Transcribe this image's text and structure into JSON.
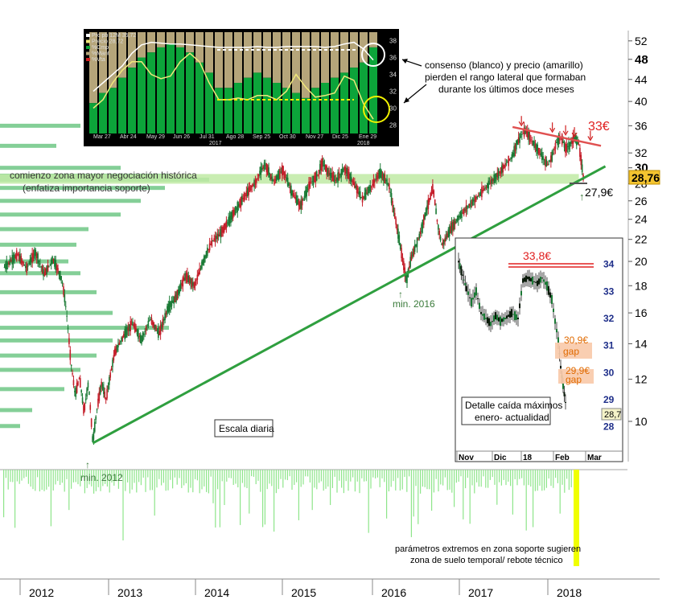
{
  "chart_data": {
    "type": "candlestick",
    "timeframe_label": "Escala diaria",
    "x_axis": {
      "years": [
        "2012",
        "2013",
        "2014",
        "2015",
        "2016",
        "2017",
        "2018"
      ]
    },
    "y_axis": {
      "scale": "log",
      "ticks": [
        "52",
        "48",
        "44",
        "40",
        "36",
        "32",
        "30",
        "28",
        "26",
        "24",
        "22",
        "20",
        "18",
        "16",
        "14",
        "12",
        "10"
      ],
      "ylim": [
        8.4,
        54
      ]
    },
    "price_series": [
      {
        "t": 2011.55,
        "v": 19.5
      },
      {
        "t": 2011.7,
        "v": 20.6
      },
      {
        "t": 2011.8,
        "v": 19.4
      },
      {
        "t": 2011.9,
        "v": 20.8
      },
      {
        "t": 2012.0,
        "v": 18.9
      },
      {
        "t": 2012.1,
        "v": 20.2
      },
      {
        "t": 2012.2,
        "v": 18.5
      },
      {
        "t": 2012.25,
        "v": 16.2
      },
      {
        "t": 2012.3,
        "v": 13.0
      },
      {
        "t": 2012.35,
        "v": 11.2
      },
      {
        "t": 2012.4,
        "v": 12.1
      },
      {
        "t": 2012.45,
        "v": 10.4
      },
      {
        "t": 2012.5,
        "v": 11.8
      },
      {
        "t": 2012.55,
        "v": 9.1
      },
      {
        "t": 2012.6,
        "v": 10.6
      },
      {
        "t": 2012.65,
        "v": 11.8
      },
      {
        "t": 2012.7,
        "v": 11.0
      },
      {
        "t": 2012.8,
        "v": 13.5
      },
      {
        "t": 2012.9,
        "v": 14.5
      },
      {
        "t": 2013.0,
        "v": 15.3
      },
      {
        "t": 2013.1,
        "v": 14.2
      },
      {
        "t": 2013.2,
        "v": 15.6
      },
      {
        "t": 2013.3,
        "v": 14.6
      },
      {
        "t": 2013.4,
        "v": 16.3
      },
      {
        "t": 2013.5,
        "v": 17.2
      },
      {
        "t": 2013.6,
        "v": 18.8
      },
      {
        "t": 2013.7,
        "v": 18.0
      },
      {
        "t": 2013.8,
        "v": 20.0
      },
      {
        "t": 2013.9,
        "v": 21.8
      },
      {
        "t": 2014.0,
        "v": 22.6
      },
      {
        "t": 2014.1,
        "v": 24.0
      },
      {
        "t": 2014.2,
        "v": 25.5
      },
      {
        "t": 2014.3,
        "v": 27.0
      },
      {
        "t": 2014.4,
        "v": 28.3
      },
      {
        "t": 2014.45,
        "v": 29.6
      },
      {
        "t": 2014.5,
        "v": 30.4
      },
      {
        "t": 2014.55,
        "v": 29.2
      },
      {
        "t": 2014.6,
        "v": 28.2
      },
      {
        "t": 2014.7,
        "v": 29.8
      },
      {
        "t": 2014.8,
        "v": 27.0
      },
      {
        "t": 2014.9,
        "v": 25.4
      },
      {
        "t": 2015.0,
        "v": 27.8
      },
      {
        "t": 2015.1,
        "v": 29.2
      },
      {
        "t": 2015.15,
        "v": 30.8
      },
      {
        "t": 2015.2,
        "v": 29.6
      },
      {
        "t": 2015.3,
        "v": 28.4
      },
      {
        "t": 2015.4,
        "v": 29.9
      },
      {
        "t": 2015.5,
        "v": 28.1
      },
      {
        "t": 2015.6,
        "v": 26.2
      },
      {
        "t": 2015.7,
        "v": 27.6
      },
      {
        "t": 2015.8,
        "v": 29.4
      },
      {
        "t": 2015.9,
        "v": 27.9
      },
      {
        "t": 2015.95,
        "v": 25.2
      },
      {
        "t": 2016.0,
        "v": 22.8
      },
      {
        "t": 2016.05,
        "v": 20.4
      },
      {
        "t": 2016.1,
        "v": 18.3
      },
      {
        "t": 2016.15,
        "v": 20.2
      },
      {
        "t": 2016.25,
        "v": 22.4
      },
      {
        "t": 2016.35,
        "v": 25.8
      },
      {
        "t": 2016.4,
        "v": 27.5
      },
      {
        "t": 2016.45,
        "v": 23.6
      },
      {
        "t": 2016.5,
        "v": 21.4
      },
      {
        "t": 2016.6,
        "v": 23.0
      },
      {
        "t": 2016.7,
        "v": 24.3
      },
      {
        "t": 2016.8,
        "v": 25.4
      },
      {
        "t": 2016.9,
        "v": 26.4
      },
      {
        "t": 2017.0,
        "v": 27.6
      },
      {
        "t": 2017.1,
        "v": 28.7
      },
      {
        "t": 2017.2,
        "v": 30.1
      },
      {
        "t": 2017.3,
        "v": 31.6
      },
      {
        "t": 2017.35,
        "v": 33.4
      },
      {
        "t": 2017.4,
        "v": 34.6
      },
      {
        "t": 2017.45,
        "v": 35.3
      },
      {
        "t": 2017.5,
        "v": 34.0
      },
      {
        "t": 2017.6,
        "v": 32.2
      },
      {
        "t": 2017.7,
        "v": 30.3
      },
      {
        "t": 2017.75,
        "v": 31.6
      },
      {
        "t": 2017.8,
        "v": 33.6
      },
      {
        "t": 2017.85,
        "v": 34.3
      },
      {
        "t": 2017.9,
        "v": 32.6
      },
      {
        "t": 2017.95,
        "v": 33.2
      },
      {
        "t": 2018.0,
        "v": 34.3
      },
      {
        "t": 2018.05,
        "v": 33.1
      },
      {
        "t": 2018.08,
        "v": 30.6
      },
      {
        "t": 2018.1,
        "v": 28.8
      }
    ],
    "support_trendline": [
      {
        "t": 2012.55,
        "v": 9.1
      },
      {
        "t": 2018.35,
        "v": 30.2
      }
    ],
    "resistance_line": {
      "from": {
        "t": 2017.3,
        "v": 35.8
      },
      "to": {
        "t": 2018.3,
        "v": 33.0
      },
      "label": "33€"
    },
    "support_zone": {
      "from": 2012.55,
      "to": 2018.05,
      "low": 28.3,
      "high": 28.9
    },
    "support_point": {
      "t": 2018.12,
      "v": 27.9,
      "label": "27,9€"
    },
    "last_price_badge": "28,76",
    "red_arrows_t": [
      2017.4,
      2017.75,
      2017.9,
      2018.0,
      2018.18
    ],
    "volume_profile_levels": [
      {
        "v": 36,
        "w": 100
      },
      {
        "v": 33,
        "w": 70
      },
      {
        "v": 30,
        "w": 150
      },
      {
        "v": 29,
        "w": 210
      },
      {
        "v": 28.5,
        "w": 260
      },
      {
        "v": 27.5,
        "w": 205
      },
      {
        "v": 26,
        "w": 175
      },
      {
        "v": 24.5,
        "w": 150
      },
      {
        "v": 23,
        "w": 110
      },
      {
        "v": 21.5,
        "w": 95
      },
      {
        "v": 20,
        "w": 85
      },
      {
        "v": 19,
        "w": 100
      },
      {
        "v": 17.5,
        "w": 120
      },
      {
        "v": 16,
        "w": 140
      },
      {
        "v": 15,
        "w": 210
      },
      {
        "v": 14.2,
        "w": 140
      },
      {
        "v": 13.3,
        "w": 120
      },
      {
        "v": 12.5,
        "w": 100
      },
      {
        "v": 11.5,
        "w": 80
      },
      {
        "v": 10.5,
        "w": 40
      },
      {
        "v": 9.8,
        "w": 25
      }
    ],
    "annotations": {
      "zone_line1": "comienzo zona mayor negociación histórica",
      "zone_line2": "(enfatiza importancia soporte)",
      "min2016": "min. 2016",
      "min2012": "min. 2012",
      "consensus_line1": "consenso (blanco) y precio (amarillo)",
      "consensus_line2": "pierden el rango lateral que formaban",
      "consensus_line3": "durante los últimos doce meses",
      "bottom_line1": "parámetros extremos en zona soporte sugieren",
      "bottom_line2": "zona de suelo temporal/ rebote técnico"
    },
    "inset_detail": {
      "title_line1": "Detalle caída máximos",
      "title_line2": "enero- actualidad",
      "resistance_label": "33,8€",
      "gap1_price": "30,9€",
      "gap1_label": "gap",
      "gap2_price": "29,9€",
      "gap2_label": "gap",
      "y_ticks": [
        "34",
        "33",
        "32",
        "31",
        "30",
        "29",
        "28"
      ],
      "x_ticks": [
        "Nov",
        "Dic",
        "18",
        "Feb",
        "Mar"
      ],
      "last_badge": "28,7"
    },
    "inset_consensus": {
      "legend": [
        "Prc pb 12M 35,72",
        "Precio 28,72",
        "%Cmp",
        "%Mant",
        "%Vta"
      ],
      "y_ticks": [
        "38",
        "36",
        "34",
        "32",
        "30",
        "28"
      ],
      "x_ticks": [
        "Mar 27",
        "Abr 24",
        "May 29",
        "Jun 26",
        "Jul 31",
        "Ago 28",
        "Sep 25",
        "Oct 30",
        "Nov 27",
        "Dic 25",
        "Ene 29"
      ],
      "year_ticks": [
        "2017",
        "2018"
      ],
      "buy_pct": [
        30,
        40,
        45,
        55,
        65,
        75,
        80,
        85,
        88,
        85,
        80,
        70,
        60,
        45,
        45,
        50,
        55,
        60,
        55,
        50,
        45,
        40,
        35,
        45,
        50,
        55,
        60,
        65,
        70,
        85
      ],
      "consensus": [
        32,
        33,
        34,
        35,
        36.5,
        37.5,
        37.8,
        37.7,
        37.6,
        37.6,
        37.5,
        37.4,
        37.3,
        37.2,
        37.2,
        37.2,
        37.2,
        37.3,
        37.2,
        37.2,
        37.3,
        37.3,
        37.3,
        37.3,
        37.2,
        37.3,
        37.6,
        37.8,
        37.0,
        35.7
      ],
      "price": [
        30,
        31,
        33,
        34.5,
        35.5,
        35.5,
        34,
        33.5,
        33.8,
        35.5,
        36.5,
        35.5,
        33,
        31,
        31,
        31.2,
        31,
        31.5,
        31.5,
        31,
        32,
        34,
        32.5,
        31.3,
        31.5,
        31.8,
        33.8,
        33.3,
        30.5,
        28.7
      ]
    },
    "colors": {
      "price_up": "#1a7a35",
      "price_down": "#c41e2a",
      "trendline": "#2f9f3f",
      "resistance": "#e05050",
      "zone": "#bfeaa4",
      "volume": "#8ee58a",
      "volume_highlight": "#f0ff00",
      "badge": "#f4c430",
      "inset_buy": "#0ca43a",
      "inset_hold": "#b5a57a",
      "annotation_green": "#3a7a3a"
    }
  }
}
